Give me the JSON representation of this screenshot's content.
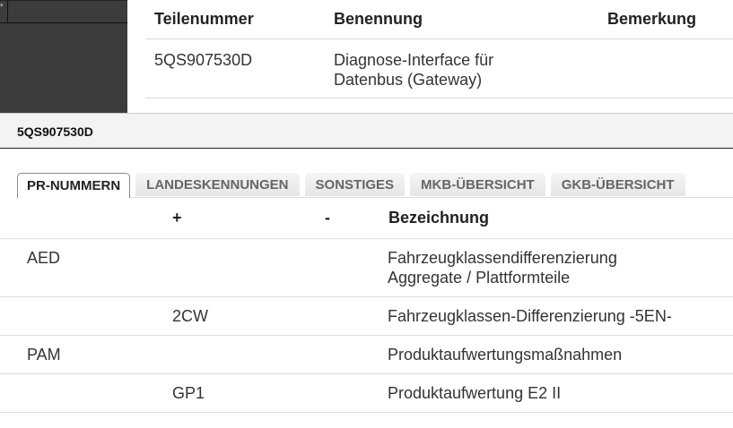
{
  "top_table": {
    "headers": [
      "Teilenummer",
      "Benennung",
      "Bemerkung"
    ],
    "rows": [
      {
        "teilenummer": "5QS907530D",
        "benennung": "Diagnose-Interface für Datenbus (Gateway)",
        "bemerkung": ""
      }
    ]
  },
  "panel_title": "5QS907530D",
  "tabs": [
    "PR-NUMMERN",
    "LANDESKENNUNGEN",
    "SONSTIGES",
    "MKB-ÜBERSICHT",
    "GKB-ÜBERSICHT"
  ],
  "pr_table": {
    "headers": [
      "",
      "+",
      "-",
      "Bezeichnung"
    ],
    "rows": [
      {
        "family": "AED",
        "plus": "",
        "minus": "",
        "text": "Fahrzeugklassendifferenzierung Aggregate / Plattformteile"
      },
      {
        "family": "",
        "plus": "2CW",
        "minus": "",
        "text": "Fahrzeugklassen-Differenzierung -5EN-"
      },
      {
        "family": "PAM",
        "plus": "",
        "minus": "",
        "text": "Produktaufwertungsmaßnahmen"
      },
      {
        "family": "",
        "plus": "GP1",
        "minus": "",
        "text": "Produktaufwertung E2 II"
      }
    ]
  }
}
